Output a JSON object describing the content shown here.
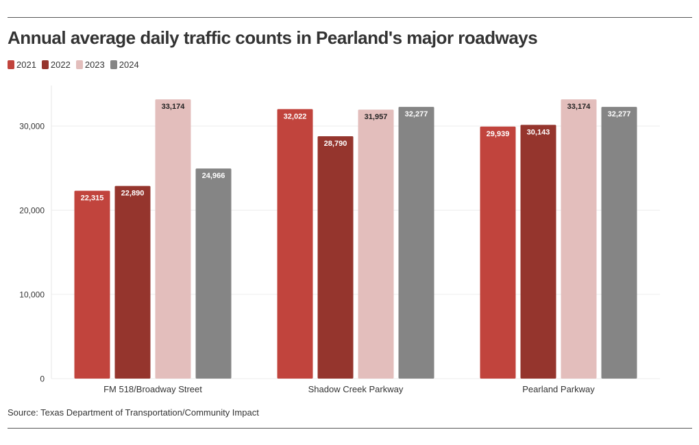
{
  "title": "Annual average daily traffic counts in Pearland's major roadways",
  "source": "Source: Texas Department of Transportation/Community Impact",
  "colors": [
    "#c1443d",
    "#95352d",
    "#e3bebc",
    "#858585"
  ],
  "chart_data": {
    "type": "bar",
    "categories": [
      "FM 518/Broadway Street",
      "Shadow Creek Parkway",
      "Pearland Parkway"
    ],
    "series": [
      {
        "name": "2021",
        "values": [
          22315,
          32022,
          29939
        ],
        "labels": [
          "22,315",
          "32,022",
          "29,939"
        ]
      },
      {
        "name": "2022",
        "values": [
          22890,
          28790,
          30143
        ],
        "labels": [
          "22,890",
          "28,790",
          "30,143"
        ]
      },
      {
        "name": "2023",
        "values": [
          33174,
          31957,
          33174
        ],
        "labels": [
          "33,174",
          "31,957",
          "33,174"
        ]
      },
      {
        "name": "2024",
        "values": [
          24966,
          32277,
          32277
        ],
        "labels": [
          "24,966",
          "32,277",
          "32,277"
        ]
      }
    ],
    "yticks": [
      0,
      10000,
      20000,
      30000
    ],
    "ytick_labels": [
      "0",
      "10,000",
      "20,000",
      "30,000"
    ],
    "ylim": [
      0,
      34000
    ],
    "grid": true,
    "legend": "top-left"
  }
}
